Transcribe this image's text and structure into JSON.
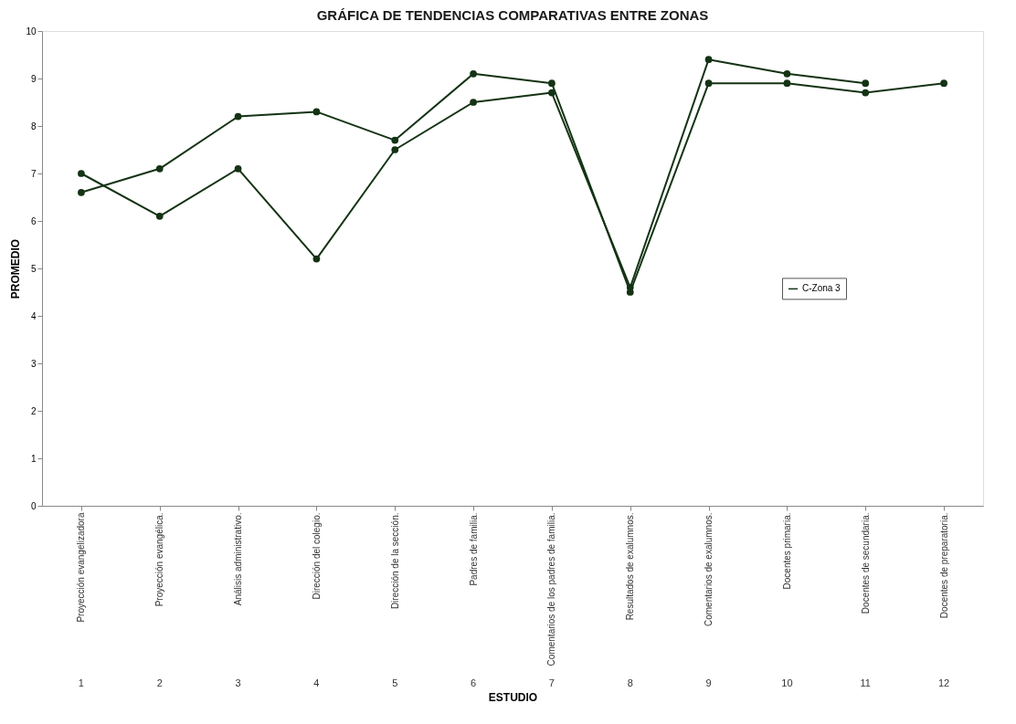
{
  "chart_data": {
    "type": "line",
    "title": "GRÁFICA DE TENDENCIAS COMPARATIVAS ENTRE ZONAS",
    "xlabel": "ESTUDIO",
    "ylabel": "PROMEDIO",
    "categories": [
      "Proyección evangelizadora",
      "Proyección evangélica.",
      "Análisis administrativo.",
      "Dirección del colegio.",
      "Dirección de la sección.",
      "Padres de familia.",
      "Comentarios de los padres de familia.",
      "Resultados de exalumnos.",
      "Comentarios de exalumnos.",
      "Docentes primaria.",
      "Docentes de secundaria.",
      "Docentes de preparatoria."
    ],
    "series": [
      {
        "color": "#143314",
        "marker": "circle",
        "values": [
          6.6,
          7.1,
          8.2,
          8.3,
          7.7,
          9.1,
          8.9,
          4.5,
          8.9,
          8.9,
          8.7,
          8.9
        ]
      },
      {
        "name": "C-Zona 3",
        "color": "#143314",
        "marker": "circle",
        "values": [
          7.0,
          6.1,
          7.1,
          5.2,
          7.5,
          8.5,
          8.7,
          4.6,
          9.4,
          9.1,
          8.9,
          null
        ]
      }
    ],
    "annotations": [
      "1",
      "2",
      "3",
      "4",
      "5",
      "6",
      "7",
      "8",
      "9",
      "10",
      "11",
      "12"
    ],
    "ylim": [
      0,
      10
    ],
    "yticks": [
      0,
      1,
      2,
      3,
      4,
      5,
      6,
      7,
      8,
      9,
      10
    ],
    "grid": false,
    "legend": "right",
    "line_style": "solid"
  }
}
